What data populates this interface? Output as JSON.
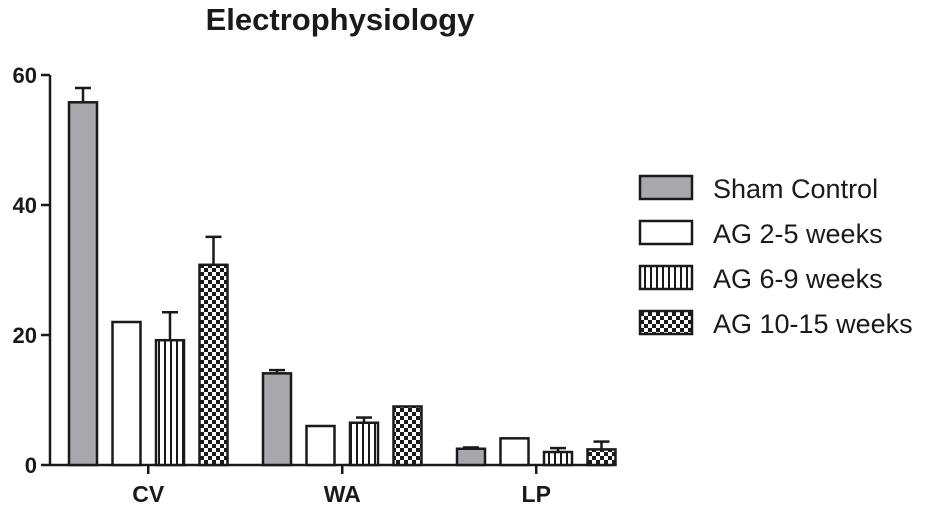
{
  "chart_data": {
    "type": "bar",
    "title": "Electrophysiology",
    "xlabel": "",
    "ylabel": "",
    "categories": [
      "CV",
      "WA",
      "LP"
    ],
    "ylim": [
      0,
      60
    ],
    "yticks": [
      "0",
      "20",
      "40",
      "60"
    ],
    "legend_position": "right",
    "grid": false,
    "series": [
      {
        "name": "Sham Control",
        "fill": "#a8a8ac",
        "pattern": "solid",
        "values": [
          55.8,
          14.1,
          2.5
        ],
        "errors": [
          2.2,
          0.5,
          0.2
        ]
      },
      {
        "name": "AG 2-5 weeks",
        "fill": "#ffffff",
        "pattern": "none",
        "values": [
          22.0,
          6.0,
          4.1
        ],
        "errors": [
          0,
          0,
          0
        ]
      },
      {
        "name": "AG 6-9 weeks",
        "fill": "#ffffff",
        "pattern": "vertical-stripes",
        "values": [
          19.2,
          6.5,
          2.0
        ],
        "errors": [
          4.3,
          0.8,
          0.6
        ]
      },
      {
        "name": "AG 10-15 weeks",
        "fill": "#ffffff",
        "pattern": "checkerboard",
        "values": [
          30.8,
          9.0,
          2.4
        ],
        "errors": [
          4.3,
          0,
          1.2
        ]
      }
    ]
  }
}
